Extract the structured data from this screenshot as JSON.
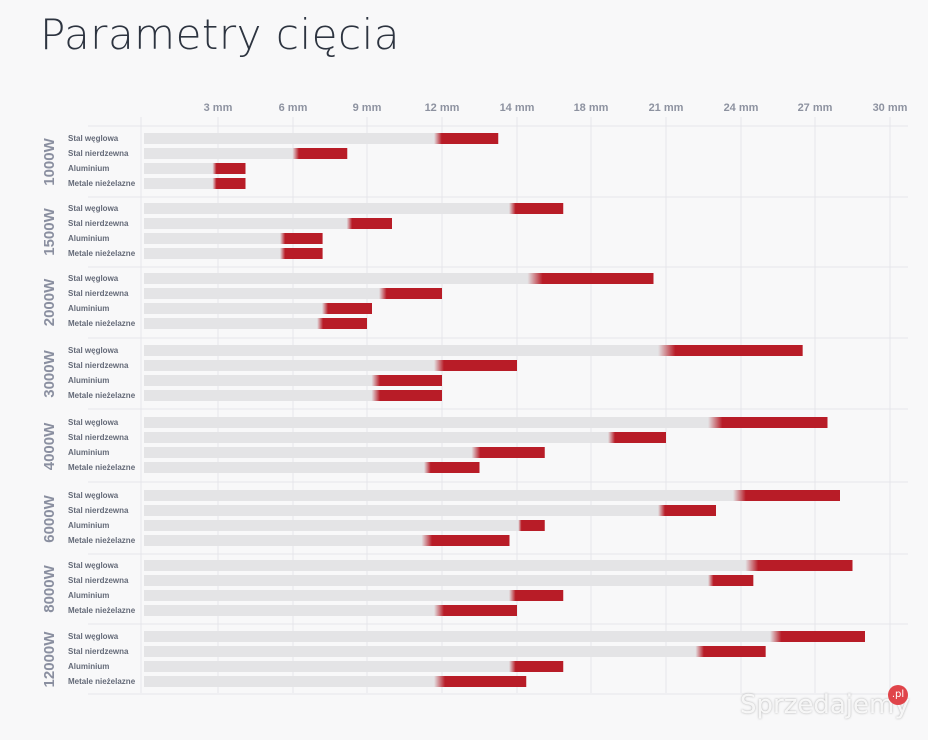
{
  "title": "Parametry cięcia",
  "watermark": {
    "text": "Sprzedajemy",
    "suffix": ".pl"
  },
  "colors": {
    "bar_base": "#e4e4e6",
    "bar_accent": "#b81c27",
    "grid": "#e6e6ea"
  },
  "chart_data": {
    "type": "bar",
    "orientation": "horizontal",
    "xticks": [
      "3 mm",
      "6 mm",
      "9 mm",
      "12 mm",
      "14 mm",
      "18 mm",
      "21 mm",
      "24 mm",
      "27 mm",
      "30 mm"
    ],
    "categories": [
      "Stal węglowa",
      "Stal nierdzewna",
      "Aluminium",
      "Metale nieżelazne"
    ],
    "groups": [
      {
        "name": "1000W",
        "bars": [
          {
            "start": 12,
            "end": 13.5
          },
          {
            "start": 6.3,
            "end": 8.2
          },
          {
            "start": 3.1,
            "end": 4.1
          },
          {
            "start": 3.1,
            "end": 4.1
          }
        ]
      },
      {
        "name": "1500W",
        "bars": [
          {
            "start": 14,
            "end": 16.5
          },
          {
            "start": 8.5,
            "end": 10
          },
          {
            "start": 5.8,
            "end": 7.2
          },
          {
            "start": 5.8,
            "end": 7.2
          }
        ]
      },
      {
        "name": "2000W",
        "bars": [
          {
            "start": 15,
            "end": 20.5
          },
          {
            "start": 9.8,
            "end": 12
          },
          {
            "start": 7.5,
            "end": 9.2
          },
          {
            "start": 7.3,
            "end": 9
          }
        ]
      },
      {
        "name": "3000W",
        "bars": [
          {
            "start": 21,
            "end": 26.5
          },
          {
            "start": 12,
            "end": 14
          },
          {
            "start": 9.5,
            "end": 12
          },
          {
            "start": 9.5,
            "end": 12
          }
        ]
      },
      {
        "name": "4000W",
        "bars": [
          {
            "start": 23,
            "end": 27.5
          },
          {
            "start": 19,
            "end": 21
          },
          {
            "start": 13,
            "end": 15.5
          },
          {
            "start": 11.6,
            "end": 13
          }
        ]
      },
      {
        "name": "6000W",
        "bars": [
          {
            "start": 24,
            "end": 28
          },
          {
            "start": 21,
            "end": 23
          },
          {
            "start": 14.5,
            "end": 15.5
          },
          {
            "start": 11.5,
            "end": 13.8
          }
        ]
      },
      {
        "name": "8000W",
        "bars": [
          {
            "start": 24.5,
            "end": 28.5
          },
          {
            "start": 23,
            "end": 24.5
          },
          {
            "start": 14,
            "end": 16.5
          },
          {
            "start": 12,
            "end": 14
          }
        ]
      },
      {
        "name": "12000W",
        "bars": [
          {
            "start": 25.5,
            "end": 29
          },
          {
            "start": 22.5,
            "end": 25
          },
          {
            "start": 14,
            "end": 16.5
          },
          {
            "start": 12,
            "end": 14.5
          }
        ]
      }
    ]
  }
}
